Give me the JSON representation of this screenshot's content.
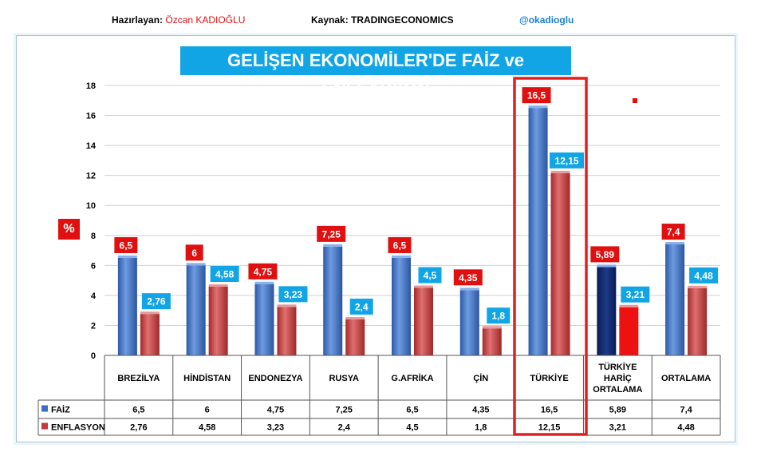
{
  "header": {
    "author_label": "Hazırlayan: ",
    "author_name": "Özcan KADIOĞLU",
    "source": "Kaynak: TRADINGECONOMICS",
    "handle": "@okadioglu"
  },
  "colors": {
    "title_bg": "#11a5e6",
    "faiz": "#3a6fc4",
    "enflasyon": "#c43a3a",
    "faiz_label_bg": "#e01010",
    "enflasyon_label_bg": "#11a5e6",
    "highlight": "#e02020",
    "turkiye_haric_faiz": "#0d2466",
    "turkiye_haric_enflasyon": "#ee1111"
  },
  "chart_data": {
    "type": "bar",
    "title": "GELİŞEN EKONOMİLER'DE FAİZ ve ENFLASYON",
    "ylabel": "%",
    "ylim": [
      0,
      18
    ],
    "yticks": [
      0,
      2,
      4,
      6,
      8,
      10,
      12,
      14,
      16,
      18
    ],
    "grid": true,
    "categories": [
      "BREZİLYA",
      "HİNDİSTAN",
      "ENDONEZYA",
      "RUSYA",
      "G.AFRİKA",
      "ÇİN",
      "TÜRKİYE",
      "TÜRKİYE HARİÇ ORTALAMA",
      "ORTALAMA"
    ],
    "series": [
      {
        "name": "FAİZ",
        "values": [
          6.5,
          6,
          4.75,
          7.25,
          6.5,
          4.35,
          16.5,
          5.89,
          7.4
        ],
        "labels": [
          "6,5",
          "6",
          "4,75",
          "7,25",
          "6,5",
          "4,35",
          "16,5",
          "5,89",
          "7,4"
        ]
      },
      {
        "name": "ENFLASYON",
        "values": [
          2.76,
          4.58,
          3.23,
          2.4,
          4.5,
          1.8,
          12.15,
          3.21,
          4.48
        ],
        "labels": [
          "2,76",
          "4,58",
          "3,23",
          "2,4",
          "4,5",
          "1,8",
          "12,15",
          "3,21",
          "4,48"
        ]
      }
    ],
    "highlighted_category": "TÜRKİYE"
  }
}
